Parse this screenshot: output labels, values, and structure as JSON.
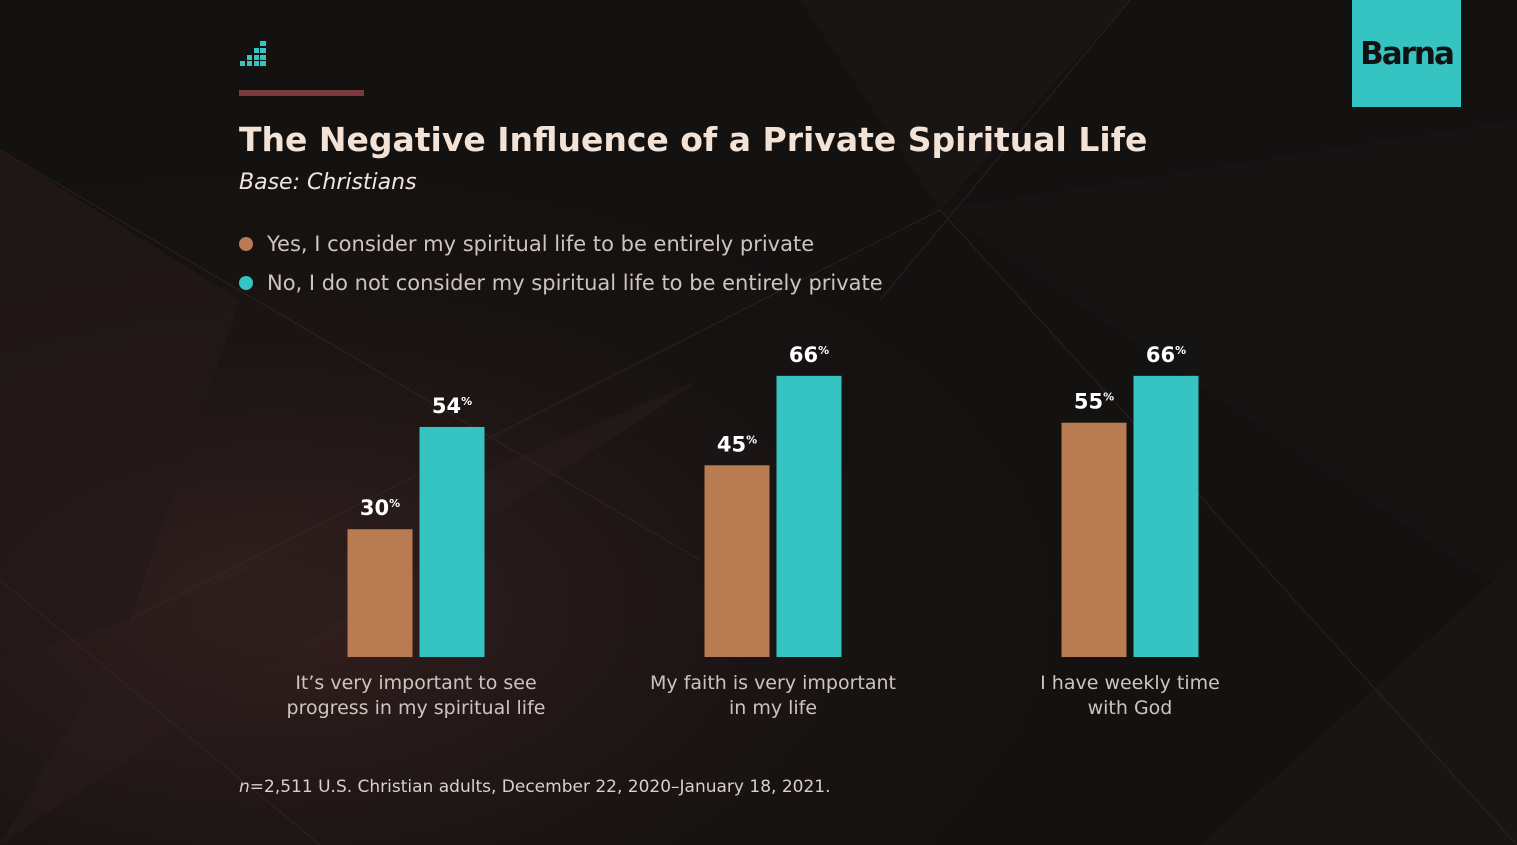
{
  "brand": {
    "logo_text": "Barna"
  },
  "chart_data": {
    "type": "bar",
    "title": "The Negative Influence of a Private Spiritual Life",
    "subtitle": "Base: Christians",
    "categories": [
      [
        "It’s very important to see",
        "progress in my spiritual life"
      ],
      [
        "My faith is very important",
        "in my life"
      ],
      [
        "I have weekly time",
        "with God"
      ]
    ],
    "series": [
      {
        "name": "Yes, I consider my spiritual life to be entirely private",
        "color": "#b87b52",
        "values": [
          30,
          45,
          55
        ]
      },
      {
        "name": "No, I do not consider my spiritual life to be entirely private",
        "color": "#35c4c2",
        "values": [
          54,
          66,
          66
        ]
      }
    ],
    "value_suffix": "%",
    "ylim": [
      0,
      100
    ],
    "legend_position": "top-left",
    "grid": false
  },
  "footnote": {
    "n_label": "n",
    "text": "=2,511 U.S. Christian adults, December 22, 2020–January 18, 2021."
  }
}
